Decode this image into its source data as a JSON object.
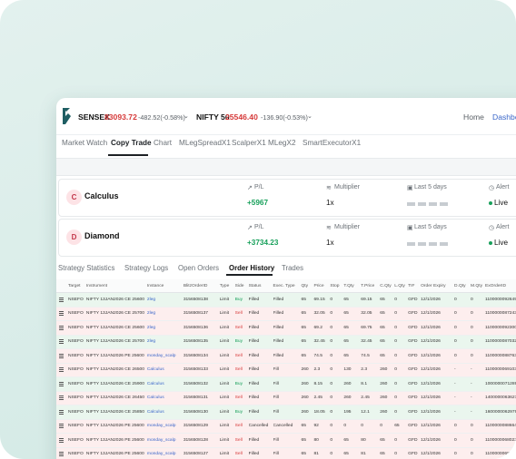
{
  "header": {
    "sensex_label": "SENSEX",
    "sensex_value": "83093.72",
    "sensex_change": "-482.52(-0.58%)",
    "nifty_label": "NIFTY 50",
    "nifty_value": "25546.40",
    "nifty_change": "-136.90(-0.53%)",
    "home_label": "Home",
    "dashboard_label": "Dashbo"
  },
  "nav_tabs": [
    "Market Watch",
    "Copy Trade",
    "Chart",
    "MLegSpreadX1",
    "ScalperX1",
    "MLegX2",
    "SmartExecutorX1"
  ],
  "strategies": [
    {
      "initial": "C",
      "name": "Calculus",
      "pl_label": "P/L",
      "pl_value": "+5967",
      "multiplier_label": "Multiplier",
      "multiplier_value": "1x",
      "period_label": "Last 5 days",
      "alert_label": "Alert",
      "status": "Live"
    },
    {
      "initial": "D",
      "name": "Diamond",
      "pl_label": "P/L",
      "pl_value": "+3734.23",
      "multiplier_label": "Multiplier",
      "multiplier_value": "1x",
      "period_label": "Last 5 days",
      "alert_label": "Alert",
      "status": "Live"
    }
  ],
  "sub_tabs": [
    "Strategy Statistics",
    "Strategy Logs",
    "Open Orders",
    "Order History",
    "Trades"
  ],
  "table": {
    "columns": [
      "",
      "Target",
      "Instrument",
      "Instance",
      "BlitzOrderID",
      "Type",
      "Side",
      "Status",
      "Exec. Type",
      "Qty",
      "Price",
      "Stop",
      "T.Qty",
      "T.Price",
      "C.Qty",
      "L.Qty",
      "TIF",
      "Order Expiry",
      "D.Qty",
      "M.Qty",
      "ExOrderID"
    ],
    "rows": [
      {
        "side": "buy",
        "cells": [
          "",
          "NSEFO",
          "NIFTY 13JAN2026 CE 25600",
          "2leg",
          "3156508138",
          "Limit",
          "Buy",
          "Filled",
          "Filled",
          "65",
          "69.15",
          "0",
          "65",
          "69.15",
          "65",
          "0",
          "GFD",
          "12/1/2026",
          "0",
          "0",
          "1100000092649",
          ""
        ]
      },
      {
        "side": "sell",
        "cells": [
          "",
          "NSEFO",
          "NIFTY 13JAN2026 CE 25700",
          "2leg",
          "3156508137",
          "Limit",
          "Sell",
          "Filled",
          "Filled",
          "65",
          "32.05",
          "0",
          "65",
          "32.05",
          "65",
          "0",
          "GFD",
          "12/1/2026",
          "0",
          "0",
          "1100000087243",
          ""
        ]
      },
      {
        "side": "sell",
        "cells": [
          "",
          "NSEFO",
          "NIFTY 13JAN2026 CE 25600",
          "2leg",
          "3156508136",
          "Limit",
          "Sell",
          "Filled",
          "Filled",
          "65",
          "69.2",
          "0",
          "65",
          "69.75",
          "65",
          "0",
          "GFD",
          "12/1/2026",
          "0",
          "0",
          "1100000092300",
          ""
        ]
      },
      {
        "side": "buy",
        "cells": [
          "",
          "NSEFO",
          "NIFTY 13JAN2026 CE 25700",
          "2leg",
          "3156508135",
          "Limit",
          "Buy",
          "Filled",
          "Filled",
          "65",
          "32.45",
          "0",
          "65",
          "32.45",
          "65",
          "0",
          "GFD",
          "12/1/2026",
          "0",
          "0",
          "1100000087032",
          ""
        ]
      },
      {
        "side": "sell",
        "cells": [
          "",
          "NSEFO",
          "NIFTY 13JAN2026 PE 25600",
          "monday_scalp",
          "3156508134",
          "Limit",
          "Sell",
          "Filled",
          "Filled",
          "65",
          "74.5",
          "0",
          "65",
          "74.5",
          "65",
          "0",
          "GFD",
          "12/1/2026",
          "0",
          "0",
          "1100000088763",
          ""
        ]
      },
      {
        "side": "sell",
        "cells": [
          "",
          "NSEFO",
          "NIFTY 13JAN2026 CE 26500",
          "Calculus",
          "3156508133",
          "Limit",
          "Sell",
          "Filled",
          "Fill",
          "260",
          "2.3",
          "0",
          "130",
          "2.3",
          "260",
          "0",
          "GFD",
          "12/1/2026",
          "-",
          "-",
          "1100000069103",
          ""
        ]
      },
      {
        "side": "buy",
        "cells": [
          "",
          "NSEFO",
          "NIFTY 13JAN2026 CE 25900",
          "Calculus",
          "3156508132",
          "Limit",
          "Buy",
          "Filled",
          "Fill",
          "260",
          "8.15",
          "0",
          "260",
          "8.1",
          "260",
          "0",
          "GFD",
          "12/1/2026",
          "-",
          "-",
          "1000000071289",
          ""
        ]
      },
      {
        "side": "sell",
        "cells": [
          "",
          "NSEFO",
          "NIFTY 13JAN2026 CE 26450",
          "Calculus",
          "3156508131",
          "Limit",
          "Sell",
          "Filled",
          "Fill",
          "260",
          "2.45",
          "0",
          "260",
          "2.45",
          "260",
          "0",
          "GFD",
          "12/1/2026",
          "-",
          "-",
          "1400000063627",
          ""
        ]
      },
      {
        "side": "buy",
        "cells": [
          "",
          "NSEFO",
          "NIFTY 13JAN2026 CE 25850",
          "Calculus",
          "3156508130",
          "Limit",
          "Buy",
          "Filled",
          "Fill",
          "260",
          "18.05",
          "0",
          "195",
          "12.1",
          "260",
          "0",
          "GFD",
          "12/1/2026",
          "-",
          "-",
          "1600000062979",
          ""
        ]
      },
      {
        "side": "sell",
        "cells": [
          "",
          "NSEFO",
          "NIFTY 13JAN2026 PE 25600",
          "monday_scalp",
          "3156508129",
          "Limit",
          "Sell",
          "Cancelled",
          "Cancelled",
          "65",
          "92",
          "0",
          "0",
          "0",
          "0",
          "65",
          "GFD",
          "12/1/2026",
          "0",
          "0",
          "1100000088664",
          ""
        ]
      },
      {
        "side": "sell",
        "cells": [
          "",
          "NSEFO",
          "NIFTY 13JAN2026 PE 25600",
          "monday_scalp",
          "3156508128",
          "Limit",
          "Sell",
          "Filled",
          "Fill",
          "65",
          "80",
          "0",
          "65",
          "80",
          "65",
          "0",
          "GFD",
          "12/1/2026",
          "0",
          "0",
          "1100000068022",
          ""
        ]
      },
      {
        "side": "sell",
        "cells": [
          "",
          "NSEFO",
          "NIFTY 13JAN2026 PE 25600",
          "monday_scalp",
          "3156508127",
          "Limit",
          "Sell",
          "Filled",
          "Fill",
          "65",
          "81",
          "0",
          "65",
          "81",
          "65",
          "0",
          "GFD",
          "12/1/2026",
          "0",
          "0",
          "1100000068022",
          ""
        ]
      }
    ]
  },
  "colors": {
    "accent_green": "#18a05b",
    "sell_red": "#d63a3a",
    "buy_row": "#eaf6ee",
    "sell_row": "#fdeeee",
    "logo": "#1f5e63"
  }
}
